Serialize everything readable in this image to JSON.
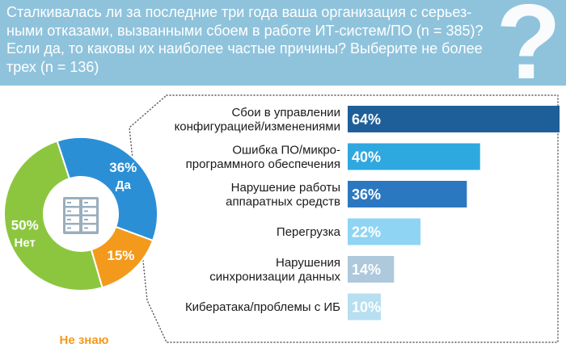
{
  "question": {
    "line1": "Сталкивалась ли за последние три года ваша организация с серьез-",
    "line2": "ными отказами, вызванными сбоем в работе ИТ-систем/ПО (n = 385)?",
    "line3": "Если да, то каковы их наиболее частые причины? Выберите не более",
    "line4": "трех (n = 136)"
  },
  "decor": {
    "question_mark": "?",
    "server_icon": "server-rack-icon"
  },
  "chart_data": [
    {
      "type": "pie",
      "donut": true,
      "slices": [
        {
          "label": "Да",
          "value_label": "36%",
          "value": 36,
          "color": "#2b8fd6"
        },
        {
          "label": "Не знаю",
          "value_label": "15%",
          "value": 15,
          "color": "#f39a1d"
        },
        {
          "label": "Нет",
          "value_label": "50%",
          "value": 50,
          "color": "#8cc63f"
        }
      ]
    },
    {
      "type": "bar",
      "orientation": "horizontal",
      "xlim": [
        0,
        64
      ],
      "bars": [
        {
          "label_lines": [
            "Сбои в управлении",
            "конфигурацией/изменениями"
          ],
          "value": 64,
          "value_label": "64%",
          "color": "#1f5f99"
        },
        {
          "label_lines": [
            "Ошибка ПО/микро-",
            "программного обеспечения"
          ],
          "value": 40,
          "value_label": "40%",
          "color": "#2fa8e0"
        },
        {
          "label_lines": [
            "Нарушение работы",
            "аппаратных средств"
          ],
          "value": 36,
          "value_label": "36%",
          "color": "#2c78c0"
        },
        {
          "label_lines": [
            "Перегрузка"
          ],
          "value": 22,
          "value_label": "22%",
          "color": "#8fd4f2"
        },
        {
          "label_lines": [
            "Нарушения",
            "синхронизации данных"
          ],
          "value": 14,
          "value_label": "14%",
          "color": "#aec8dc"
        },
        {
          "label_lines": [
            "Кибератака/проблемы с ИБ"
          ],
          "value": 10,
          "value_label": "10%",
          "color": "#b6dff0"
        }
      ]
    }
  ]
}
